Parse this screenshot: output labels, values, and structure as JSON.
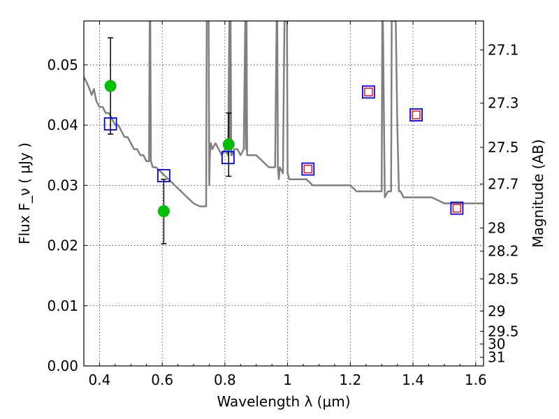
{
  "chart_data": {
    "type": "scatter",
    "title": "",
    "xlabel": "Wavelength  λ (μm)",
    "ylabel": "Flux  F_ν  ( μJy )",
    "y2label": "Magnitude (AB)",
    "xlim": [
      0.35,
      1.625
    ],
    "ylim": [
      0.0,
      0.0573
    ],
    "grid": true,
    "x_ticks": [
      "0.4",
      "0.6",
      "0.8",
      "1",
      "1.2",
      "1.4",
      "1.6"
    ],
    "x_tick_values": [
      0.4,
      0.6,
      0.8,
      1.0,
      1.2,
      1.4,
      1.6
    ],
    "y_ticks": [
      "0.00",
      "0.01",
      "0.02",
      "0.03",
      "0.04",
      "0.05"
    ],
    "y_tick_values": [
      0.0,
      0.01,
      0.02,
      0.03,
      0.04,
      0.05
    ],
    "y2_ticks": [
      "27.1",
      "27.3",
      "27.5",
      "27.7",
      "28",
      "28.2",
      "28.5",
      "29",
      "29.5",
      "30",
      "31"
    ],
    "y2_tick_values": [
      27.1,
      27.3,
      27.5,
      27.7,
      28.0,
      28.2,
      28.5,
      29.0,
      29.5,
      30.0,
      31.0
    ],
    "series": [
      {
        "kind": "line",
        "color": "#808080",
        "x": [
          0.35,
          0.36,
          0.368,
          0.375,
          0.382,
          0.39,
          0.4,
          0.41,
          0.42,
          0.43,
          0.44,
          0.45,
          0.46,
          0.47,
          0.48,
          0.49,
          0.5,
          0.51,
          0.52,
          0.53,
          0.54,
          0.55,
          0.558,
          0.56,
          0.562,
          0.564,
          0.57,
          0.58,
          0.6,
          0.62,
          0.64,
          0.66,
          0.68,
          0.7,
          0.72,
          0.74,
          0.742,
          0.745,
          0.748,
          0.75,
          0.752,
          0.755,
          0.76,
          0.77,
          0.78,
          0.79,
          0.8,
          0.81,
          0.814,
          0.816,
          0.818,
          0.82,
          0.822,
          0.83,
          0.84,
          0.85,
          0.86,
          0.865,
          0.867,
          0.869,
          0.871,
          0.88,
          0.9,
          0.92,
          0.94,
          0.96,
          0.965,
          0.967,
          0.969,
          0.972,
          0.975,
          0.985,
          0.99,
          0.992,
          0.996,
          0.998,
          1.0,
          1.005,
          1.02,
          1.04,
          1.06,
          1.08,
          1.1,
          1.12,
          1.15,
          1.18,
          1.2,
          1.22,
          1.24,
          1.26,
          1.28,
          1.3,
          1.302,
          1.304,
          1.31,
          1.32,
          1.33,
          1.332,
          1.334,
          1.336,
          1.338,
          1.34,
          1.345,
          1.35,
          1.355,
          1.36,
          1.37,
          1.4,
          1.43,
          1.46,
          1.5,
          1.55,
          1.6,
          1.625
        ],
        "y": [
          0.048,
          0.047,
          0.046,
          0.045,
          0.046,
          0.044,
          0.043,
          0.043,
          0.042,
          0.042,
          0.041,
          0.04,
          0.04,
          0.039,
          0.038,
          0.038,
          0.037,
          0.036,
          0.036,
          0.035,
          0.035,
          0.034,
          0.034,
          0.0573,
          0.0573,
          0.034,
          0.033,
          0.033,
          0.032,
          0.031,
          0.03,
          0.029,
          0.028,
          0.027,
          0.0265,
          0.0265,
          0.0573,
          0.0573,
          0.0573,
          0.03,
          0.035,
          0.037,
          0.036,
          0.037,
          0.036,
          0.035,
          0.036,
          0.035,
          0.0573,
          0.036,
          0.0573,
          0.035,
          0.035,
          0.036,
          0.036,
          0.035,
          0.036,
          0.0573,
          0.036,
          0.0573,
          0.035,
          0.035,
          0.035,
          0.034,
          0.033,
          0.033,
          0.0573,
          0.0573,
          0.033,
          0.031,
          0.033,
          0.032,
          0.0573,
          0.0573,
          0.0573,
          0.0573,
          0.032,
          0.031,
          0.031,
          0.031,
          0.031,
          0.03,
          0.03,
          0.03,
          0.03,
          0.03,
          0.03,
          0.029,
          0.029,
          0.029,
          0.029,
          0.029,
          0.0573,
          0.0573,
          0.028,
          0.029,
          0.029,
          0.0573,
          0.0573,
          0.0573,
          0.0573,
          0.0573,
          0.0573,
          0.04,
          0.029,
          0.029,
          0.028,
          0.028,
          0.028,
          0.028,
          0.027,
          0.027,
          0.027,
          0.027
        ]
      },
      {
        "kind": "points",
        "marker": "circle",
        "color": "#00bf00",
        "x": [
          0.435,
          0.605,
          0.812
        ],
        "y": [
          0.0465,
          0.0257,
          0.0368
        ],
        "yerr_low": [
          0.0385,
          0.0203,
          0.0315
        ],
        "yerr_high": [
          0.0545,
          0.031,
          0.042
        ]
      },
      {
        "kind": "points",
        "marker": "open-square",
        "color": "#0000ff",
        "x": [
          0.435,
          0.605,
          0.81,
          1.065,
          1.258,
          1.41,
          1.54
        ],
        "y": [
          0.0402,
          0.0316,
          0.0346,
          0.0327,
          0.0455,
          0.0417,
          0.0262
        ]
      },
      {
        "kind": "points",
        "marker": "open-square-small",
        "color": "#ff0000",
        "x": [
          1.065,
          1.258,
          1.41,
          1.54
        ],
        "y": [
          0.0327,
          0.0455,
          0.0417,
          0.0262
        ]
      }
    ]
  }
}
